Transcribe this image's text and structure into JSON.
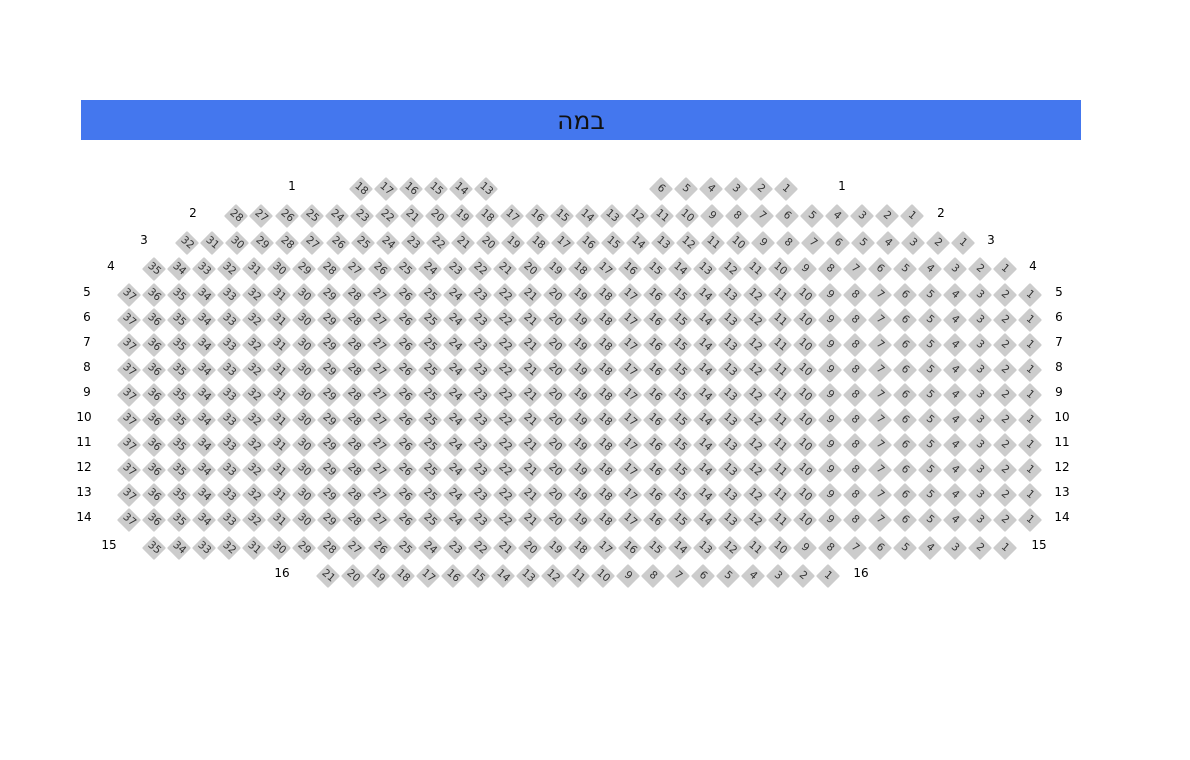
{
  "stage": {
    "label": "במה",
    "color": "#4477ee"
  },
  "seat_color": "#cccccc",
  "rows": [
    {
      "label": "1",
      "seats": [
        1,
        2,
        3,
        4,
        5,
        6,
        13,
        14,
        15,
        16,
        17,
        18
      ]
    },
    {
      "label": "2",
      "seats": [
        1,
        2,
        3,
        4,
        5,
        6,
        7,
        8,
        9,
        10,
        11,
        12,
        13,
        14,
        15,
        16,
        17,
        18,
        19,
        20,
        21,
        22,
        23,
        24,
        25,
        26,
        27,
        28
      ]
    },
    {
      "label": "3",
      "seats": [
        1,
        2,
        3,
        4,
        5,
        6,
        7,
        8,
        9,
        10,
        11,
        12,
        13,
        14,
        15,
        16,
        17,
        18,
        19,
        20,
        21,
        22,
        23,
        24,
        25,
        26,
        27,
        28,
        29,
        30,
        31,
        32
      ]
    },
    {
      "label": "4",
      "seats": [
        1,
        2,
        3,
        4,
        5,
        6,
        7,
        8,
        9,
        10,
        11,
        12,
        13,
        14,
        15,
        16,
        17,
        18,
        19,
        20,
        21,
        22,
        23,
        24,
        25,
        26,
        27,
        28,
        29,
        30,
        31,
        32,
        33,
        34,
        35
      ]
    },
    {
      "label": "5",
      "seats": [
        1,
        2,
        3,
        4,
        5,
        6,
        7,
        8,
        9,
        10,
        11,
        12,
        13,
        14,
        15,
        16,
        17,
        18,
        19,
        20,
        21,
        22,
        23,
        24,
        25,
        26,
        27,
        28,
        29,
        30,
        31,
        32,
        33,
        34,
        35,
        36,
        37
      ]
    },
    {
      "label": "6",
      "seats": [
        1,
        2,
        3,
        4,
        5,
        6,
        7,
        8,
        9,
        10,
        11,
        12,
        13,
        14,
        15,
        16,
        17,
        18,
        19,
        20,
        21,
        22,
        23,
        24,
        25,
        26,
        27,
        28,
        29,
        30,
        31,
        32,
        33,
        34,
        35,
        36,
        37
      ]
    },
    {
      "label": "7",
      "seats": [
        1,
        2,
        3,
        4,
        5,
        6,
        7,
        8,
        9,
        10,
        11,
        12,
        13,
        14,
        15,
        16,
        17,
        18,
        19,
        20,
        21,
        22,
        23,
        24,
        25,
        26,
        27,
        28,
        29,
        30,
        31,
        32,
        33,
        34,
        35,
        36,
        37
      ]
    },
    {
      "label": "8",
      "seats": [
        1,
        2,
        3,
        4,
        5,
        6,
        7,
        8,
        9,
        10,
        11,
        12,
        13,
        14,
        15,
        16,
        17,
        18,
        19,
        20,
        21,
        22,
        23,
        24,
        25,
        26,
        27,
        28,
        29,
        30,
        31,
        32,
        33,
        34,
        35,
        36,
        37
      ]
    },
    {
      "label": "9",
      "seats": [
        1,
        2,
        3,
        4,
        5,
        6,
        7,
        8,
        9,
        10,
        11,
        12,
        13,
        14,
        15,
        16,
        17,
        18,
        19,
        20,
        21,
        22,
        23,
        24,
        25,
        26,
        27,
        28,
        29,
        30,
        31,
        32,
        33,
        34,
        35,
        36,
        37
      ]
    },
    {
      "label": "10",
      "seats": [
        1,
        2,
        3,
        4,
        5,
        6,
        7,
        8,
        9,
        10,
        11,
        12,
        13,
        14,
        15,
        16,
        17,
        18,
        19,
        20,
        21,
        22,
        23,
        24,
        25,
        26,
        27,
        28,
        29,
        30,
        31,
        32,
        33,
        34,
        35,
        36,
        37
      ]
    },
    {
      "label": "11",
      "seats": [
        1,
        2,
        3,
        4,
        5,
        6,
        7,
        8,
        9,
        10,
        11,
        12,
        13,
        14,
        15,
        16,
        17,
        18,
        19,
        20,
        21,
        22,
        23,
        24,
        25,
        26,
        27,
        28,
        29,
        30,
        31,
        32,
        33,
        34,
        35,
        36,
        37
      ]
    },
    {
      "label": "12",
      "seats": [
        1,
        2,
        3,
        4,
        5,
        6,
        7,
        8,
        9,
        10,
        11,
        12,
        13,
        14,
        15,
        16,
        17,
        18,
        19,
        20,
        21,
        22,
        23,
        24,
        25,
        26,
        27,
        28,
        29,
        30,
        31,
        32,
        33,
        34,
        35,
        36,
        37
      ]
    },
    {
      "label": "13",
      "seats": [
        1,
        2,
        3,
        4,
        5,
        6,
        7,
        8,
        9,
        10,
        11,
        12,
        13,
        14,
        15,
        16,
        17,
        18,
        19,
        20,
        21,
        22,
        23,
        24,
        25,
        26,
        27,
        28,
        29,
        30,
        31,
        32,
        33,
        34,
        35,
        36,
        37
      ]
    },
    {
      "label": "14",
      "seats": [
        1,
        2,
        3,
        4,
        5,
        6,
        7,
        8,
        9,
        10,
        11,
        12,
        13,
        14,
        15,
        16,
        17,
        18,
        19,
        20,
        21,
        22,
        23,
        24,
        25,
        26,
        27,
        28,
        29,
        30,
        31,
        32,
        33,
        34,
        35,
        36,
        37
      ]
    },
    {
      "label": "15",
      "seats": [
        1,
        2,
        3,
        4,
        5,
        6,
        7,
        8,
        9,
        10,
        11,
        12,
        13,
        14,
        15,
        16,
        17,
        18,
        19,
        20,
        21,
        22,
        23,
        24,
        25,
        26,
        27,
        28,
        29,
        30,
        31,
        32,
        33,
        34,
        35
      ]
    },
    {
      "label": "16",
      "seats": [
        1,
        2,
        3,
        4,
        5,
        6,
        7,
        8,
        9,
        10,
        11,
        12,
        13,
        14,
        15,
        16,
        17,
        18,
        19,
        20,
        21
      ]
    }
  ]
}
